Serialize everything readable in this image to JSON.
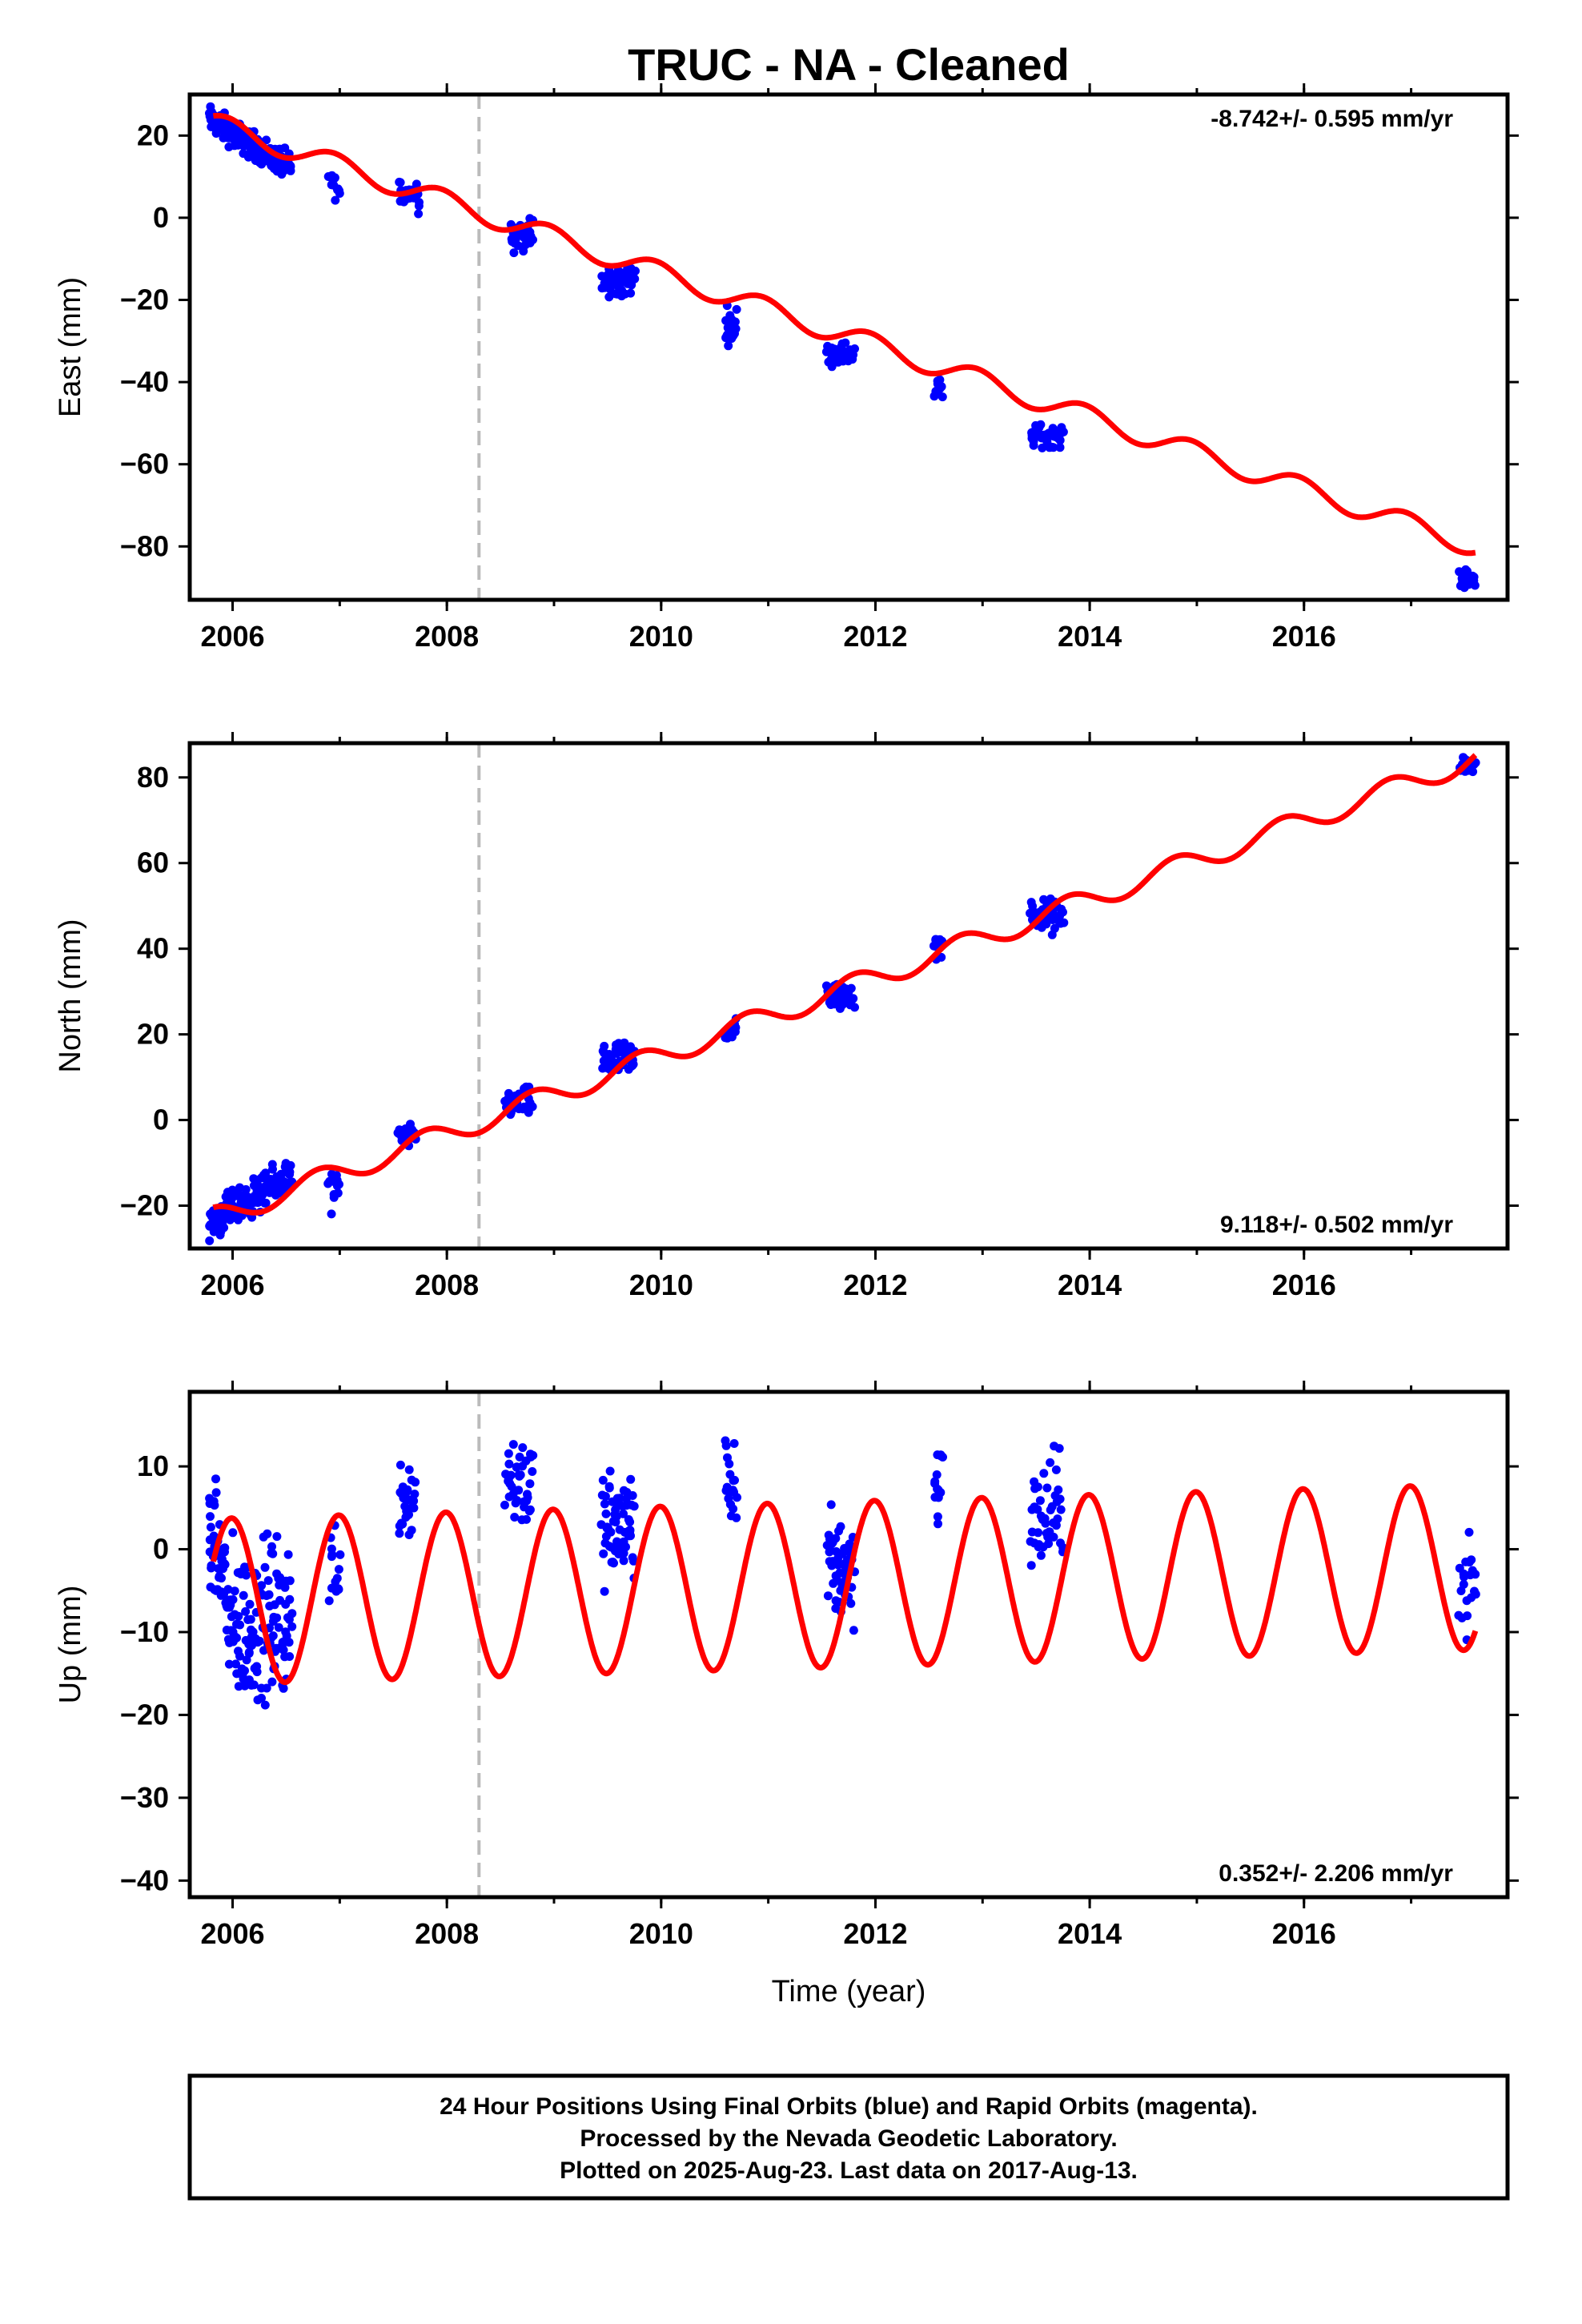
{
  "title": "TRUC  - NA - Cleaned",
  "colors": {
    "fit": "#ff0000",
    "points": "#0000ff",
    "event": "#bbbbbb",
    "frame": "#000000"
  },
  "footer": {
    "line1": "24 Hour Positions Using Final Orbits (blue) and Rapid Orbits (magenta).",
    "line2": "Processed by the Nevada Geodetic Laboratory.",
    "line3": "Plotted on 2025-Aug-23. Last data on 2017-Aug-13."
  },
  "chart_data": [
    {
      "type": "scatter",
      "ylabel": "East (mm)",
      "xlabel": "",
      "xlim": [
        2005.6,
        2017.9
      ],
      "ylim": [
        -93,
        30
      ],
      "xticks": [
        2006,
        2008,
        2010,
        2012,
        2014,
        2016
      ],
      "yticks": [
        -80,
        -60,
        -40,
        -20,
        0,
        20
      ],
      "rate_label": "-8.742+/- 0.595 mm/yr",
      "rate_position": "top-right",
      "event_line_x": 2008.3,
      "series": [
        {
          "role": "trend",
          "style": "line",
          "start": 2005.82,
          "end": 2017.6,
          "intercept_at_start": 23,
          "slope": -8.742,
          "seasonal_amplitude": 2.6,
          "seasonal_phase_year": 2005.95
        },
        {
          "role": "observations",
          "style": "points",
          "clusters": [
            {
              "x0": 2005.78,
              "x1": 2006.55,
              "y_from": 24,
              "y_to": 12,
              "spread": 5,
              "count": 160
            },
            {
              "x0": 2006.9,
              "x1": 2007.0,
              "y_from": 10,
              "y_to": 6,
              "spread": 4,
              "count": 12
            },
            {
              "x0": 2007.55,
              "x1": 2007.75,
              "y_from": 6,
              "y_to": 6,
              "spread": 6,
              "count": 25
            },
            {
              "x0": 2008.6,
              "x1": 2008.8,
              "y_from": -4,
              "y_to": -4,
              "spread": 6,
              "count": 35
            },
            {
              "x0": 2009.45,
              "x1": 2009.75,
              "y_from": -16,
              "y_to": -15,
              "spread": 6,
              "count": 50
            },
            {
              "x0": 2010.6,
              "x1": 2010.7,
              "y_from": -26,
              "y_to": -26,
              "spread": 6,
              "count": 20
            },
            {
              "x0": 2011.55,
              "x1": 2011.8,
              "y_from": -33,
              "y_to": -33,
              "spread": 4,
              "count": 40
            },
            {
              "x0": 2012.55,
              "x1": 2012.62,
              "y_from": -42,
              "y_to": -42,
              "spread": 4,
              "count": 10
            },
            {
              "x0": 2013.45,
              "x1": 2013.75,
              "y_from": -53,
              "y_to": -53,
              "spread": 4,
              "count": 45
            },
            {
              "x0": 2017.45,
              "x1": 2017.6,
              "y_from": -88,
              "y_to": -88,
              "spread": 3,
              "count": 18
            }
          ]
        }
      ]
    },
    {
      "type": "scatter",
      "ylabel": "North (mm)",
      "xlabel": "",
      "xlim": [
        2005.6,
        2017.9
      ],
      "ylim": [
        -30,
        88
      ],
      "xticks": [
        2006,
        2008,
        2010,
        2012,
        2014,
        2016
      ],
      "yticks": [
        -20,
        0,
        20,
        40,
        60,
        80
      ],
      "rate_label": "9.118+/- 0.502 mm/yr",
      "rate_position": "bottom-right",
      "event_line_x": 2008.3,
      "series": [
        {
          "role": "trend",
          "style": "line",
          "start": 2005.82,
          "end": 2017.6,
          "intercept_at_start": -23,
          "slope": 9.118,
          "seasonal_amplitude": 2.6,
          "seasonal_phase_year": 2005.8
        },
        {
          "role": "observations",
          "style": "points",
          "clusters": [
            {
              "x0": 2005.78,
              "x1": 2006.55,
              "y_from": -24,
              "y_to": -13,
              "spread": 6,
              "count": 170
            },
            {
              "x0": 2006.9,
              "x1": 2007.0,
              "y_from": -17,
              "y_to": -17,
              "spread": 8,
              "count": 12
            },
            {
              "x0": 2007.55,
              "x1": 2007.7,
              "y_from": -4,
              "y_to": -4,
              "spread": 4,
              "count": 20
            },
            {
              "x0": 2008.55,
              "x1": 2008.8,
              "y_from": 4,
              "y_to": 4,
              "spread": 5,
              "count": 35
            },
            {
              "x0": 2009.45,
              "x1": 2009.75,
              "y_from": 14,
              "y_to": 14,
              "spread": 6,
              "count": 55
            },
            {
              "x0": 2010.6,
              "x1": 2010.7,
              "y_from": 21,
              "y_to": 21,
              "spread": 4,
              "count": 20
            },
            {
              "x0": 2011.55,
              "x1": 2011.8,
              "y_from": 29,
              "y_to": 29,
              "spread": 5,
              "count": 45
            },
            {
              "x0": 2012.55,
              "x1": 2012.62,
              "y_from": 40,
              "y_to": 40,
              "spread": 4,
              "count": 12
            },
            {
              "x0": 2013.45,
              "x1": 2013.75,
              "y_from": 48,
              "y_to": 47,
              "spread": 6,
              "count": 50
            },
            {
              "x0": 2017.45,
              "x1": 2017.6,
              "y_from": 83,
              "y_to": 83,
              "spread": 3,
              "count": 18
            }
          ]
        }
      ]
    },
    {
      "type": "scatter",
      "ylabel": "Up (mm)",
      "xlabel": "Time (year)",
      "xlim": [
        2005.6,
        2017.9
      ],
      "ylim": [
        -42,
        19
      ],
      "xticks": [
        2006,
        2008,
        2010,
        2012,
        2014,
        2016
      ],
      "yticks": [
        -40,
        -30,
        -20,
        -10,
        0,
        10
      ],
      "rate_label": "0.352+/- 2.206 mm/yr",
      "rate_position": "bottom-right",
      "event_line_x": 2008.3,
      "series": [
        {
          "role": "trend",
          "style": "line",
          "start": 2005.82,
          "end": 2017.6,
          "intercept_at_start": -6.3,
          "slope": 0.352,
          "seasonal_amplitude": 10,
          "seasonal_phase_year": 2005.99
        },
        {
          "role": "observations",
          "style": "points",
          "clusters": [
            {
              "x0": 2005.78,
              "x1": 2005.95,
              "y_from": 2,
              "y_to": -4,
              "spread": 10,
              "count": 50
            },
            {
              "x0": 2005.95,
              "x1": 2006.55,
              "y_from": -10,
              "y_to": -8,
              "spread": 14,
              "count": 140
            },
            {
              "x0": 2006.9,
              "x1": 2007.0,
              "y_from": -2,
              "y_to": -2,
              "spread": 8,
              "count": 14
            },
            {
              "x0": 2007.55,
              "x1": 2007.7,
              "y_from": 7,
              "y_to": 6,
              "spread": 8,
              "count": 30
            },
            {
              "x0": 2008.55,
              "x1": 2008.8,
              "y_from": 9,
              "y_to": 8,
              "spread": 9,
              "count": 40
            },
            {
              "x0": 2009.45,
              "x1": 2009.75,
              "y_from": 2,
              "y_to": 3,
              "spread": 10,
              "count": 65
            },
            {
              "x0": 2010.6,
              "x1": 2010.7,
              "y_from": 8,
              "y_to": 8,
              "spread": 8,
              "count": 20
            },
            {
              "x0": 2011.55,
              "x1": 2011.8,
              "y_from": -2,
              "y_to": -2,
              "spread": 10,
              "count": 55
            },
            {
              "x0": 2012.55,
              "x1": 2012.62,
              "y_from": 8,
              "y_to": 8,
              "spread": 8,
              "count": 14
            },
            {
              "x0": 2013.45,
              "x1": 2013.75,
              "y_from": 3,
              "y_to": 5,
              "spread": 10,
              "count": 45
            },
            {
              "x0": 2017.45,
              "x1": 2017.6,
              "y_from": -4,
              "y_to": -4,
              "spread": 8,
              "count": 20
            }
          ]
        }
      ]
    }
  ]
}
